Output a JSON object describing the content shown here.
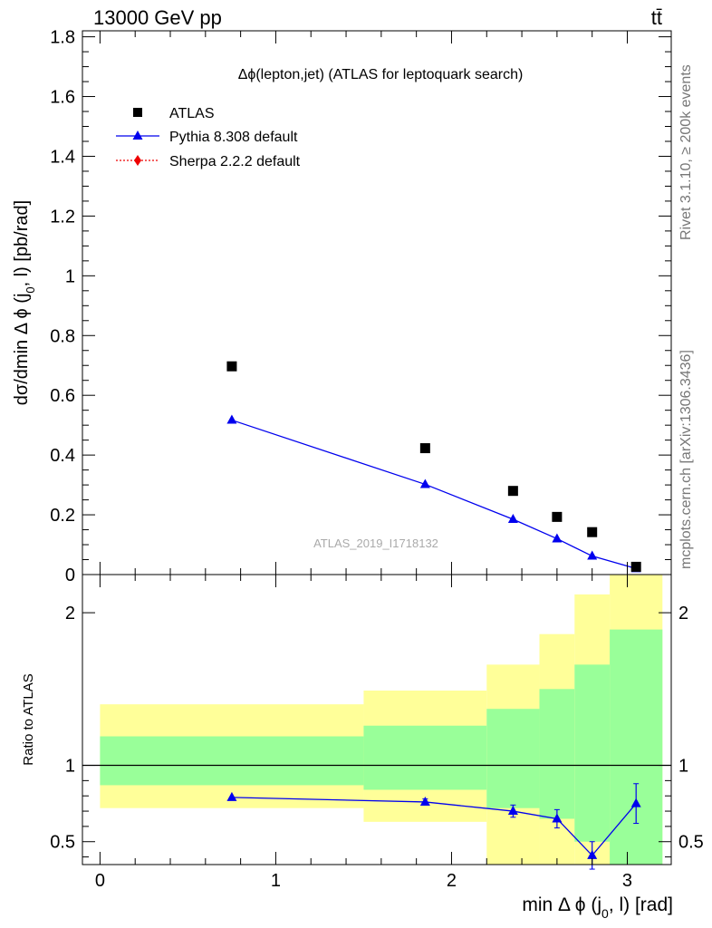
{
  "header": {
    "energy_label": "13000 GeV pp",
    "process_label": "tt̄"
  },
  "side_labels": {
    "rivet": "Rivet 3.1.10, ≥ 200k events",
    "mcplots": "mcplots.cern.ch [arXiv:1306.3436]"
  },
  "colors": {
    "atlas": "#000000",
    "pythia": "#0000ee",
    "sherpa": "#ee0000",
    "band_outer": "#ffff99",
    "band_inner": "#99ff99"
  },
  "chart_data": [
    {
      "type": "scatter",
      "title": "Δϕ(lepton,jet) (ATLAS for leptoquark search)",
      "ylabel": "dσ/dmin Δ ϕ (j0, l) [pb/rad]",
      "watermark": "ATLAS_2019_I1718132",
      "xlim": [
        -0.1,
        3.25
      ],
      "ylim": [
        0,
        1.82
      ],
      "yticks": [
        0,
        0.2,
        0.4,
        0.6,
        0.8,
        1,
        1.2,
        1.4,
        1.6,
        1.8
      ],
      "yticklabels": [
        "0",
        "0.2",
        "0.4",
        "0.6",
        "0.8",
        "1",
        "1.2",
        "1.4",
        "1.6",
        "1.8"
      ],
      "legend": [
        {
          "label": "ATLAS",
          "marker": "square",
          "color": "#000000"
        },
        {
          "label": "Pythia 8.308 default",
          "marker": "triangle",
          "color": "#0000ee"
        },
        {
          "label": "Sherpa 2.2.2 default",
          "marker": "diamond",
          "color": "#ee0000"
        }
      ],
      "legend_position": "top-left",
      "series": [
        {
          "name": "ATLAS",
          "x": [
            0.75,
            1.85,
            2.35,
            2.6,
            2.8,
            3.05
          ],
          "y": [
            0.697,
            0.423,
            0.28,
            0.193,
            0.142,
            0.026
          ]
        },
        {
          "name": "Pythia 8.308 default",
          "x": [
            0.75,
            1.85,
            2.35,
            2.6,
            2.8,
            3.05
          ],
          "y": [
            0.517,
            0.302,
            0.185,
            0.12,
            0.062,
            0.02
          ]
        }
      ]
    },
    {
      "type": "line",
      "ylabel": "Ratio to ATLAS",
      "xlabel": "min Δ ϕ (j0, l) [rad]",
      "xlim": [
        -0.1,
        3.25
      ],
      "ylim": [
        0.35,
        2.25
      ],
      "xticks": [
        0,
        1,
        2,
        3
      ],
      "xticklabels": [
        "0",
        "1",
        "2",
        "3"
      ],
      "yticks": [
        0.5,
        1,
        2
      ],
      "yticklabels": [
        "0.5",
        "1",
        "2"
      ],
      "bins": [
        {
          "lo": 0.0,
          "hi": 1.5,
          "inner": [
            0.87,
            1.19
          ],
          "outer": [
            0.72,
            1.4
          ]
        },
        {
          "lo": 1.5,
          "hi": 2.2,
          "inner": [
            0.84,
            1.26
          ],
          "outer": [
            0.63,
            1.49
          ]
        },
        {
          "lo": 2.2,
          "hi": 2.5,
          "inner": [
            0.72,
            1.37
          ],
          "outer": [
            0.35,
            1.66
          ]
        },
        {
          "lo": 2.5,
          "hi": 2.7,
          "inner": [
            0.65,
            1.5
          ],
          "outer": [
            0.35,
            1.86
          ]
        },
        {
          "lo": 2.7,
          "hi": 2.9,
          "inner": [
            0.5,
            1.66
          ],
          "outer": [
            0.35,
            2.12
          ]
        },
        {
          "lo": 2.9,
          "hi": 3.2,
          "inner": [
            0.35,
            1.89
          ],
          "outer": [
            0.35,
            2.25
          ]
        }
      ],
      "series": [
        {
          "name": "Pythia 8.308 default",
          "x": [
            0.75,
            1.85,
            2.35,
            2.6,
            2.8,
            3.05
          ],
          "y": [
            0.79,
            0.76,
            0.7,
            0.65,
            0.41,
            0.75
          ],
          "err": [
            0.01,
            0.02,
            0.04,
            0.06,
            0.09,
            0.13
          ]
        }
      ]
    }
  ]
}
